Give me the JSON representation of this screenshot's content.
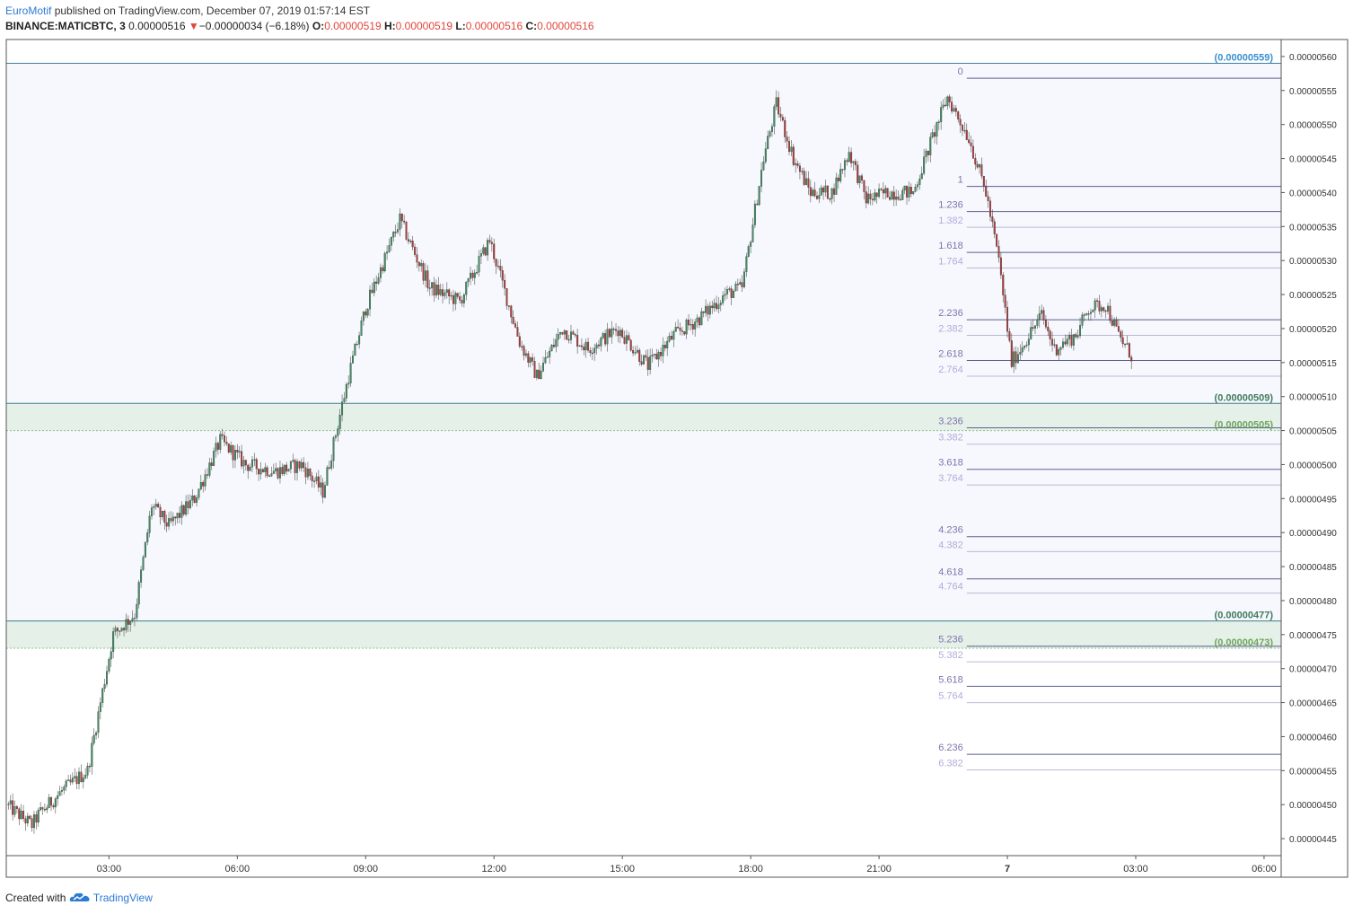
{
  "header": {
    "author": "EuroMotif",
    "published_text": "published on TradingView.com, December 07, 2019 01:57:14 EST",
    "symbol": "BINANCE:MATICBTC, 3",
    "last_price": "0.00000516",
    "change_arrow": "▼",
    "change": "−0.00000034 (−6.18%)",
    "open_label": "O:",
    "open": "0.00000519",
    "high_label": "H:",
    "high": "0.00000519",
    "low_label": "L:",
    "low": "0.00000516",
    "close_label": "C:",
    "close": "0.00000516"
  },
  "footer": {
    "created_with": "Created with",
    "brand": "TradingView"
  },
  "colors": {
    "up": "#3f8f63",
    "down": "#b23a3a",
    "background_band": "#f6f8fd",
    "support_zone": "#e5f0e8",
    "fib_dark": "#7f73ad",
    "fib_light": "#b3aadb",
    "zone_label_dark": "#3f7a5c",
    "zone_label_light": "#6ea55f",
    "top_label": "#3a8fd0",
    "accent_red": "#e0463d"
  },
  "chart_data": {
    "type": "candlestick",
    "title": "",
    "y_range": [
      4.425e-06,
      5.625e-06
    ],
    "y_axis_ticks": [
      "0.00000560",
      "0.00000555",
      "0.00000550",
      "0.00000545",
      "0.00000540",
      "0.00000535",
      "0.00000530",
      "0.00000525",
      "0.00000520",
      "0.00000515",
      "0.00000510",
      "0.00000505",
      "0.00000500",
      "0.00000495",
      "0.00000490",
      "0.00000485",
      "0.00000480",
      "0.00000475",
      "0.00000470",
      "0.00000465",
      "0.00000460",
      "0.00000455",
      "0.00000450",
      "0.00000445"
    ],
    "x_axis_ticks": [
      {
        "label": "03:00",
        "hours": 3
      },
      {
        "label": "06:00",
        "hours": 6
      },
      {
        "label": "09:00",
        "hours": 9
      },
      {
        "label": "12:00",
        "hours": 12
      },
      {
        "label": "15:00",
        "hours": 15
      },
      {
        "label": "18:00",
        "hours": 18
      },
      {
        "label": "21:00",
        "hours": 21
      },
      {
        "label": "7",
        "hours": 24
      },
      {
        "label": "03:00",
        "hours": 27
      },
      {
        "label": "06:00",
        "hours": 30
      }
    ],
    "x_range_hours": [
      0.6,
      30.4
    ],
    "price_path": [
      {
        "h": 0.6,
        "p": 4.5e-06
      },
      {
        "h": 1.2,
        "p": 4.47e-06
      },
      {
        "h": 1.35,
        "p": 4.485e-06
      },
      {
        "h": 1.9,
        "p": 4.52e-06
      },
      {
        "h": 2.5,
        "p": 4.55e-06
      },
      {
        "h": 2.8,
        "p": 4.65e-06
      },
      {
        "h": 3.1,
        "p": 4.75e-06
      },
      {
        "h": 3.6,
        "p": 4.78e-06
      },
      {
        "h": 4.0,
        "p": 4.94e-06
      },
      {
        "h": 4.4,
        "p": 4.91e-06
      },
      {
        "h": 5.0,
        "p": 4.95e-06
      },
      {
        "h": 5.6,
        "p": 5.035e-06
      },
      {
        "h": 6.2,
        "p": 5e-06
      },
      {
        "h": 6.9,
        "p": 4.99e-06
      },
      {
        "h": 7.5,
        "p": 5e-06
      },
      {
        "h": 8.0,
        "p": 4.96e-06
      },
      {
        "h": 8.6,
        "p": 5.13e-06
      },
      {
        "h": 9.0,
        "p": 5.23e-06
      },
      {
        "h": 9.8,
        "p": 5.36e-06
      },
      {
        "h": 10.5,
        "p": 5.26e-06
      },
      {
        "h": 11.2,
        "p": 5.24e-06
      },
      {
        "h": 11.9,
        "p": 5.33e-06
      },
      {
        "h": 12.6,
        "p": 5.18e-06
      },
      {
        "h": 13.0,
        "p": 5.13e-06
      },
      {
        "h": 13.6,
        "p": 5.2e-06
      },
      {
        "h": 14.2,
        "p": 5.17e-06
      },
      {
        "h": 14.9,
        "p": 5.2e-06
      },
      {
        "h": 15.6,
        "p": 5.145e-06
      },
      {
        "h": 16.2,
        "p": 5.19e-06
      },
      {
        "h": 16.8,
        "p": 5.215e-06
      },
      {
        "h": 17.4,
        "p": 5.25e-06
      },
      {
        "h": 17.8,
        "p": 5.26e-06
      },
      {
        "h": 18.3,
        "p": 5.45e-06
      },
      {
        "h": 18.6,
        "p": 5.53e-06
      },
      {
        "h": 19.0,
        "p": 5.45e-06
      },
      {
        "h": 19.4,
        "p": 5.4e-06
      },
      {
        "h": 19.9,
        "p": 5.4e-06
      },
      {
        "h": 20.3,
        "p": 5.46e-06
      },
      {
        "h": 20.7,
        "p": 5.39e-06
      },
      {
        "h": 21.2,
        "p": 5.4e-06
      },
      {
        "h": 21.8,
        "p": 5.4e-06
      },
      {
        "h": 22.3,
        "p": 5.49e-06
      },
      {
        "h": 22.6,
        "p": 5.54e-06
      },
      {
        "h": 23.1,
        "p": 5.48e-06
      },
      {
        "h": 23.5,
        "p": 5.4e-06
      },
      {
        "h": 23.8,
        "p": 5.3e-06
      },
      {
        "h": 24.1,
        "p": 5.15e-06
      },
      {
        "h": 24.4,
        "p": 5.18e-06
      },
      {
        "h": 24.8,
        "p": 5.22e-06
      },
      {
        "h": 25.1,
        "p": 5.17e-06
      },
      {
        "h": 25.6,
        "p": 5.19e-06
      },
      {
        "h": 25.9,
        "p": 5.23e-06
      },
      {
        "h": 26.3,
        "p": 5.235e-06
      },
      {
        "h": 26.6,
        "p": 5.19e-06
      },
      {
        "h": 26.9,
        "p": 5.16e-06
      }
    ],
    "horizontal_lines": [
      {
        "price": 5.59e-06,
        "label": "(0.00000559)",
        "kind": "top"
      },
      {
        "price": 5.09e-06,
        "label": "(0.00000509)",
        "kind": "zone_top"
      },
      {
        "price": 5.05e-06,
        "label": "(0.00000505)",
        "kind": "zone_bottom"
      },
      {
        "price": 4.77e-06,
        "label": "(0.00000477)",
        "kind": "zone_top"
      },
      {
        "price": 4.73e-06,
        "label": "(0.00000473)",
        "kind": "zone_bottom"
      }
    ],
    "fib_extension": {
      "start_hours": 23.05,
      "levels": [
        {
          "label": "0",
          "price": 5.568e-06,
          "style": "dark"
        },
        {
          "label": "1",
          "price": 5.409e-06,
          "style": "dark"
        },
        {
          "label": "1.236",
          "price": 5.372e-06,
          "style": "dark"
        },
        {
          "label": "1.382",
          "price": 5.349e-06,
          "style": "light"
        },
        {
          "label": "1.618",
          "price": 5.312e-06,
          "style": "dark"
        },
        {
          "label": "1.764",
          "price": 5.289e-06,
          "style": "light"
        },
        {
          "label": "2.236",
          "price": 5.213e-06,
          "style": "dark"
        },
        {
          "label": "2.382",
          "price": 5.19e-06,
          "style": "light"
        },
        {
          "label": "2.618",
          "price": 5.153e-06,
          "style": "dark"
        },
        {
          "label": "2.764",
          "price": 5.13e-06,
          "style": "light"
        },
        {
          "label": "3.236",
          "price": 5.054e-06,
          "style": "dark"
        },
        {
          "label": "3.382",
          "price": 5.03e-06,
          "style": "light"
        },
        {
          "label": "3.618",
          "price": 4.993e-06,
          "style": "dark"
        },
        {
          "label": "3.764",
          "price": 4.97e-06,
          "style": "light"
        },
        {
          "label": "4.236",
          "price": 4.894e-06,
          "style": "dark"
        },
        {
          "label": "4.382",
          "price": 4.872e-06,
          "style": "light"
        },
        {
          "label": "4.618",
          "price": 4.832e-06,
          "style": "dark"
        },
        {
          "label": "4.764",
          "price": 4.811e-06,
          "style": "light"
        },
        {
          "label": "5.236",
          "price": 4.733e-06,
          "style": "dark"
        },
        {
          "label": "5.382",
          "price": 4.71e-06,
          "style": "light"
        },
        {
          "label": "5.618",
          "price": 4.674e-06,
          "style": "dark"
        },
        {
          "label": "5.764",
          "price": 4.65e-06,
          "style": "light"
        },
        {
          "label": "6.236",
          "price": 4.574e-06,
          "style": "dark"
        },
        {
          "label": "6.382",
          "price": 4.551e-06,
          "style": "light"
        }
      ]
    },
    "background_band": {
      "from": 4.77e-06,
      "to": 5.59e-06
    },
    "support_zones": [
      {
        "from": 5.05e-06,
        "to": 5.09e-06
      },
      {
        "from": 4.73e-06,
        "to": 4.77e-06
      }
    ]
  }
}
